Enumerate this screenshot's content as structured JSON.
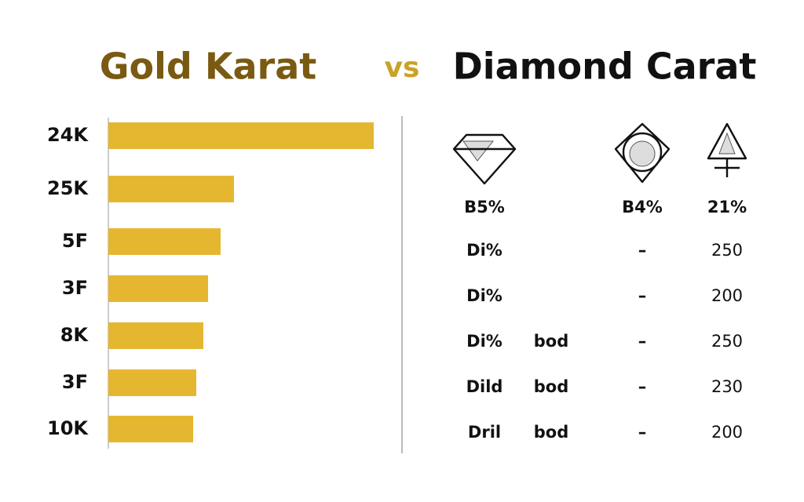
{
  "chart_data": {
    "type": "bar",
    "orientation": "horizontal",
    "title": "Gold Karat",
    "categories": [
      "24K",
      "25K",
      "5F",
      "3F",
      "8K",
      "3F",
      "10K"
    ],
    "values": [
      338,
      160,
      143,
      127,
      121,
      112,
      108
    ],
    "color": "#e5b731",
    "title_color": "#7a5a12",
    "xlim": [
      0,
      340
    ]
  },
  "header": {
    "vs": "vs",
    "title": "Diamond Carat"
  },
  "table": {
    "header": [
      "B5%",
      null,
      "B4%",
      "21%"
    ],
    "rows": [
      [
        "Di%",
        null,
        "–",
        250
      ],
      [
        "Di%",
        null,
        "–",
        200
      ],
      [
        "Di%",
        "bod",
        "–",
        250
      ],
      [
        "Dild",
        "bod",
        "–",
        230
      ],
      [
        "Dril",
        "bod",
        "–",
        200
      ]
    ]
  }
}
